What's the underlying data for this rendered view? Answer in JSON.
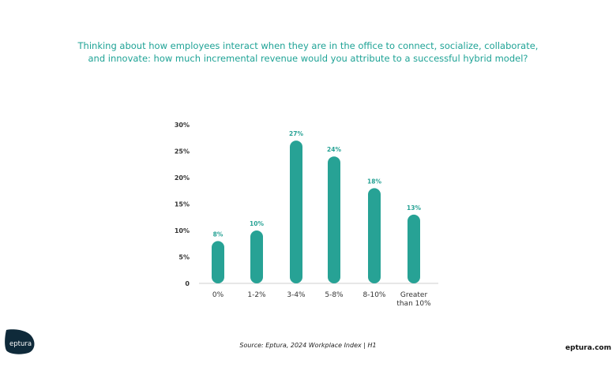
{
  "title_lines": [
    "Thinking about how employees interact when they are in the office to connect, socialize, collaborate,",
    "and innovate: how much incremental revenue would you attribute to a successful hybrid model?"
  ],
  "chart_data": {
    "type": "bar",
    "categories": [
      "0%",
      "1-2%",
      "3-4%",
      "5-8%",
      "8-10%",
      "Greater than 10%"
    ],
    "category_lines": [
      [
        "0%"
      ],
      [
        "1-2%"
      ],
      [
        "3-4%"
      ],
      [
        "5-8%"
      ],
      [
        "8-10%"
      ],
      [
        "Greater",
        "than 10%"
      ]
    ],
    "values": [
      8,
      10,
      27,
      24,
      18,
      13
    ],
    "data_labels": [
      "8%",
      "10%",
      "27%",
      "24%",
      "18%",
      "13%"
    ],
    "ylim": [
      0,
      30
    ],
    "yticks": [
      0,
      5,
      10,
      15,
      20,
      25,
      30
    ],
    "ytick_labels": [
      "0",
      "5%",
      "10%",
      "15%",
      "20%",
      "25%",
      "30%"
    ],
    "grid": false,
    "bar_color": "#27a295"
  },
  "source": "Source: Eptura, 2024 Workplace Index | H1",
  "brand": {
    "logo_text": "eptura",
    "site": "eptura.com",
    "logo_color": "#0f2a3a"
  }
}
